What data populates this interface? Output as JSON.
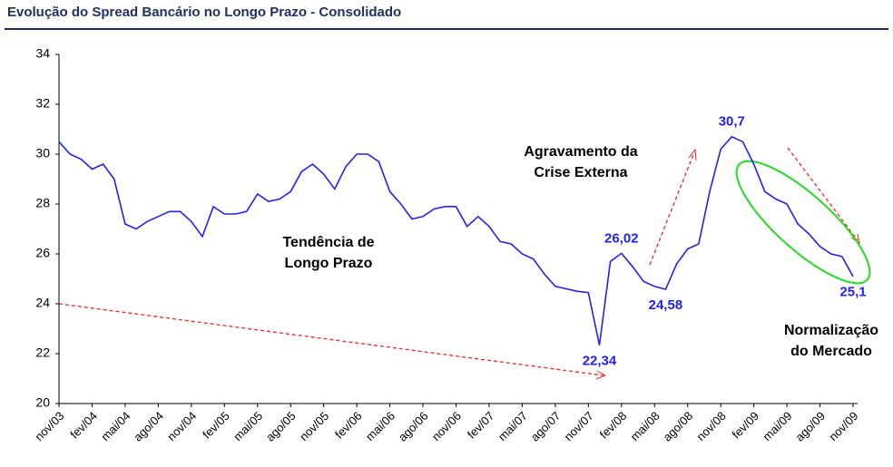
{
  "chart_data": {
    "type": "line",
    "title": "Evolução do Spread Bancário no Longo Prazo - Consolidado",
    "categories": [
      "nov/03",
      null,
      null,
      "fev/04",
      null,
      null,
      "mai/04",
      null,
      null,
      "ago/04",
      null,
      null,
      "nov/04",
      null,
      null,
      "fev/05",
      null,
      null,
      "mai/05",
      null,
      null,
      "ago/05",
      null,
      null,
      "nov/05",
      null,
      null,
      "fev/06",
      null,
      null,
      "mai/06",
      null,
      null,
      "ago/06",
      null,
      null,
      "nov/06",
      null,
      null,
      "fev/07",
      null,
      null,
      "mai/07",
      null,
      null,
      "ago/07",
      null,
      null,
      "nov/07",
      null,
      null,
      "fev/08",
      null,
      null,
      "mai/08",
      null,
      null,
      "ago/08",
      null,
      null,
      "nov/08",
      null,
      null,
      "fev/09",
      null,
      null,
      "mai/09",
      null,
      null,
      "ago/09",
      null,
      null,
      "nov/09"
    ],
    "values": [
      30.5,
      30.0,
      29.8,
      29.4,
      29.6,
      29.0,
      27.2,
      27.0,
      27.3,
      27.5,
      27.7,
      27.7,
      27.3,
      26.7,
      27.9,
      27.6,
      27.6,
      27.7,
      28.4,
      28.1,
      28.2,
      28.5,
      29.3,
      29.6,
      29.2,
      28.6,
      29.5,
      30.0,
      30.0,
      29.7,
      28.5,
      28.0,
      27.4,
      27.5,
      27.8,
      27.9,
      27.9,
      27.1,
      27.5,
      27.1,
      26.5,
      26.4,
      26.0,
      25.8,
      25.2,
      24.7,
      24.6,
      24.5,
      24.45,
      22.34,
      25.7,
      26.02,
      25.5,
      24.9,
      24.7,
      24.58,
      25.6,
      26.2,
      26.4,
      28.5,
      30.2,
      30.7,
      30.5,
      29.6,
      28.5,
      28.2,
      28.0,
      27.2,
      26.8,
      26.3,
      26.0,
      25.9,
      25.1
    ],
    "value_labels": [
      null,
      null,
      null,
      null,
      null,
      null,
      null,
      null,
      null,
      null,
      null,
      null,
      null,
      null,
      null,
      null,
      null,
      null,
      null,
      null,
      null,
      null,
      null,
      null,
      null,
      null,
      null,
      null,
      null,
      null,
      null,
      null,
      null,
      null,
      null,
      null,
      null,
      null,
      null,
      null,
      null,
      null,
      null,
      null,
      null,
      null,
      null,
      null,
      null,
      "22,34",
      null,
      "26,02",
      null,
      null,
      null,
      "24,58",
      null,
      null,
      null,
      null,
      null,
      "30,7",
      null,
      null,
      null,
      null,
      null,
      null,
      null,
      null,
      null,
      null,
      "25,1"
    ],
    "color": "#2020ff",
    "ylim": [
      20,
      34
    ],
    "yticks": [
      20,
      22,
      24,
      26,
      28,
      30,
      32,
      34
    ],
    "annotations": [
      [
        "Tendência de",
        "Longo Prazo"
      ],
      [
        "Agravamento da",
        "Crise Externa"
      ],
      [
        "Normalização",
        "do Mercado"
      ]
    ]
  }
}
